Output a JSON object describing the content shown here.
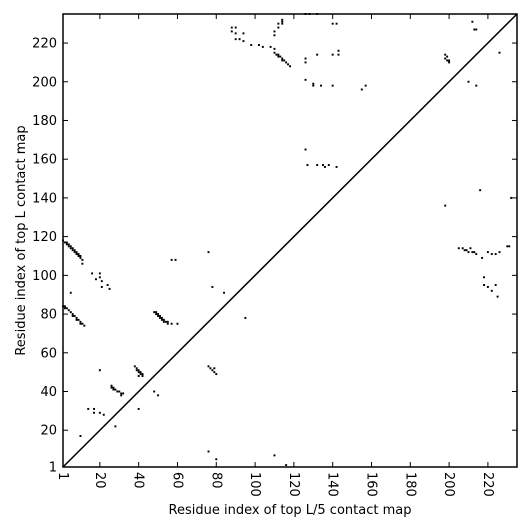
{
  "chart_data": {
    "type": "scatter",
    "xlabel": "Residue index of top L/5 contact map",
    "ylabel": "Residue index of top L contact map",
    "xlim": [
      1,
      235
    ],
    "ylim": [
      1,
      235
    ],
    "xticks": [
      1,
      20,
      40,
      60,
      80,
      100,
      120,
      140,
      160,
      180,
      200,
      220
    ],
    "yticks": [
      1,
      20,
      40,
      60,
      80,
      100,
      120,
      140,
      160,
      180,
      200,
      220
    ],
    "diagonal": true,
    "grid": false,
    "marker_color": "#000000",
    "points_upper": [
      [
        88,
        228
      ],
      [
        90,
        228
      ],
      [
        88,
        226
      ],
      [
        90,
        225
      ],
      [
        94,
        225
      ],
      [
        90,
        222
      ],
      [
        92,
        222
      ],
      [
        94,
        221
      ],
      [
        98,
        219
      ],
      [
        102,
        219
      ],
      [
        104,
        218
      ],
      [
        108,
        218
      ],
      [
        110,
        217
      ],
      [
        110,
        226
      ],
      [
        110,
        224
      ],
      [
        112,
        228
      ],
      [
        112,
        230
      ],
      [
        114,
        230
      ],
      [
        114,
        232
      ],
      [
        114,
        231
      ],
      [
        126,
        235
      ],
      [
        128,
        235
      ],
      [
        132,
        235
      ],
      [
        140,
        230
      ],
      [
        142,
        230
      ],
      [
        110,
        215
      ],
      [
        111,
        214
      ],
      [
        112,
        214
      ],
      [
        112,
        213
      ],
      [
        113,
        213
      ],
      [
        114,
        212
      ],
      [
        115,
        211
      ],
      [
        116,
        210
      ],
      [
        117,
        209
      ],
      [
        118,
        208
      ],
      [
        114,
        211
      ],
      [
        126,
        212
      ],
      [
        126,
        210
      ],
      [
        132,
        214
      ],
      [
        140,
        214
      ],
      [
        143,
        216
      ],
      [
        143,
        214
      ],
      [
        126,
        201
      ],
      [
        130,
        199
      ],
      [
        130,
        198
      ],
      [
        134,
        198
      ],
      [
        140,
        198
      ],
      [
        155,
        196
      ],
      [
        157,
        198
      ],
      [
        126,
        165
      ],
      [
        127,
        157
      ],
      [
        132,
        157
      ],
      [
        135,
        157
      ],
      [
        136,
        156
      ],
      [
        138,
        157
      ],
      [
        142,
        156
      ],
      [
        198,
        214
      ],
      [
        198,
        212
      ],
      [
        199,
        213
      ],
      [
        199,
        211
      ],
      [
        200,
        211
      ],
      [
        200,
        210
      ],
      [
        212,
        231
      ],
      [
        213,
        227
      ],
      [
        214,
        227
      ],
      [
        226,
        215
      ],
      [
        232,
        140
      ],
      [
        198,
        136
      ],
      [
        214,
        198
      ],
      [
        210,
        200
      ],
      [
        216,
        144
      ],
      [
        205,
        114
      ],
      [
        207,
        114
      ],
      [
        208,
        113
      ],
      [
        209,
        113
      ],
      [
        210,
        112
      ],
      [
        211,
        114
      ],
      [
        212,
        112
      ],
      [
        213,
        112
      ],
      [
        214,
        111
      ],
      [
        217,
        109
      ],
      [
        220,
        112
      ],
      [
        222,
        111
      ],
      [
        224,
        111
      ],
      [
        226,
        112
      ],
      [
        230,
        115
      ],
      [
        231,
        115
      ],
      [
        218,
        99
      ],
      [
        218,
        95
      ],
      [
        220,
        94
      ],
      [
        222,
        92
      ],
      [
        224,
        95
      ],
      [
        225,
        89
      ]
    ],
    "points_lower": [
      [
        1,
        118
      ],
      [
        2,
        117
      ],
      [
        3,
        117
      ],
      [
        3,
        116
      ],
      [
        4,
        116
      ],
      [
        4,
        115
      ],
      [
        5,
        115
      ],
      [
        5,
        114
      ],
      [
        6,
        114
      ],
      [
        6,
        113
      ],
      [
        7,
        113
      ],
      [
        7,
        112
      ],
      [
        8,
        112
      ],
      [
        8,
        111
      ],
      [
        9,
        111
      ],
      [
        9,
        110
      ],
      [
        10,
        110
      ],
      [
        10,
        109
      ],
      [
        11,
        108
      ],
      [
        11,
        106
      ],
      [
        1,
        84
      ],
      [
        2,
        84
      ],
      [
        2,
        83
      ],
      [
        3,
        83
      ],
      [
        4,
        82
      ],
      [
        5,
        81
      ],
      [
        6,
        80
      ],
      [
        6,
        79
      ],
      [
        7,
        79
      ],
      [
        8,
        78
      ],
      [
        8,
        77
      ],
      [
        9,
        77
      ],
      [
        10,
        76
      ],
      [
        10,
        75
      ],
      [
        11,
        75
      ],
      [
        12,
        74
      ],
      [
        5,
        91
      ],
      [
        16,
        101
      ],
      [
        18,
        98
      ],
      [
        20,
        101
      ],
      [
        20,
        99
      ],
      [
        21,
        97
      ],
      [
        21,
        94
      ],
      [
        24,
        95
      ],
      [
        25,
        93
      ],
      [
        20,
        51
      ],
      [
        26,
        43
      ],
      [
        26,
        42
      ],
      [
        27,
        42
      ],
      [
        27,
        41
      ],
      [
        28,
        41
      ],
      [
        29,
        40
      ],
      [
        30,
        40
      ],
      [
        31,
        39
      ],
      [
        31,
        38
      ],
      [
        32,
        39
      ],
      [
        28,
        22
      ],
      [
        14,
        31
      ],
      [
        17,
        31
      ],
      [
        17,
        29
      ],
      [
        20,
        29
      ],
      [
        22,
        28
      ],
      [
        10,
        17
      ],
      [
        38,
        53
      ],
      [
        39,
        52
      ],
      [
        39,
        51
      ],
      [
        40,
        51
      ],
      [
        40,
        50
      ],
      [
        41,
        50
      ],
      [
        41,
        49
      ],
      [
        42,
        49
      ],
      [
        40,
        48
      ],
      [
        42,
        48
      ],
      [
        40,
        31
      ],
      [
        48,
        81
      ],
      [
        49,
        81
      ],
      [
        49,
        80
      ],
      [
        50,
        80
      ],
      [
        50,
        79
      ],
      [
        51,
        79
      ],
      [
        51,
        78
      ],
      [
        52,
        78
      ],
      [
        52,
        77
      ],
      [
        53,
        77
      ],
      [
        53,
        76
      ],
      [
        54,
        76
      ],
      [
        55,
        76
      ],
      [
        55,
        75
      ],
      [
        57,
        75
      ],
      [
        60,
        75
      ],
      [
        57,
        108
      ],
      [
        59,
        108
      ],
      [
        48,
        40
      ],
      [
        50,
        38
      ],
      [
        76,
        112
      ],
      [
        76,
        53
      ],
      [
        77,
        52
      ],
      [
        78,
        51
      ],
      [
        79,
        52
      ],
      [
        79,
        50
      ],
      [
        80,
        49
      ],
      [
        78,
        94
      ],
      [
        84,
        91
      ],
      [
        95,
        78
      ],
      [
        76,
        9
      ],
      [
        80,
        5
      ],
      [
        110,
        7
      ],
      [
        116,
        2
      ]
    ]
  }
}
